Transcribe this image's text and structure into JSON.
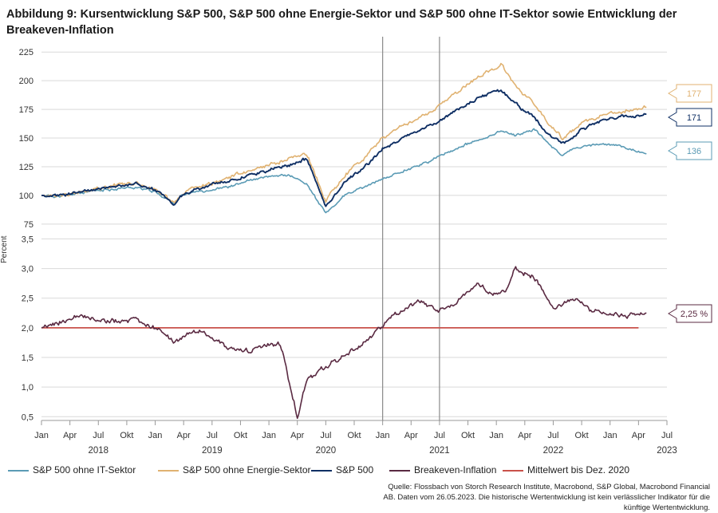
{
  "title": "Abbildung 9: Kursentwicklung S&P 500, S&P 500 ohne Energie-Sektor und S&P 500 ohne IT-Sektor sowie Entwicklung der Breakeven-Inflation",
  "source": "Quelle: Flossbach von Storch Research Institute, Macrobond, S&P Global, Macrobond Financial AB. Daten vom 26.05.2023. Die historische Wertentwicklung ist kein verlässlicher Indikator für die künftige Wertentwicklung.",
  "colors": {
    "it": "#5b9bb5",
    "energy": "#e0b271",
    "sp500": "#0f2f64",
    "breakeven": "#5a2a42",
    "mean": "#c9514a"
  },
  "chart_data": [
    {
      "type": "line",
      "title": "Kursentwicklung",
      "xlabel": "",
      "ylabel": "",
      "ylim": [
        70,
        230
      ],
      "yticks": [
        "75",
        "100",
        "125",
        "150",
        "175",
        "200",
        "225"
      ],
      "x_month_ticks": [
        "Jan",
        "Apr",
        "Jul",
        "Okt",
        "Jan",
        "Apr",
        "Jul",
        "Okt",
        "Jan",
        "Apr",
        "Jul",
        "Okt",
        "Jan",
        "Apr",
        "Jul",
        "Okt",
        "Jan",
        "Apr",
        "Jul",
        "Okt",
        "Jan",
        "Apr",
        "Jul"
      ],
      "x_years": [
        "2018",
        "2019",
        "2020",
        "2021",
        "2022",
        "2023"
      ],
      "x": [
        0,
        2,
        4,
        6,
        8,
        10,
        12,
        14,
        14.7,
        16,
        18,
        20,
        22,
        24,
        26,
        28,
        30,
        32,
        34,
        36,
        38,
        41,
        43,
        45,
        47,
        48.5,
        50,
        52,
        53.5,
        55,
        56,
        57,
        59,
        61,
        63.9
      ],
      "series": [
        {
          "name": "S&P 500 ohne IT-Sektor",
          "color": "#5b9bb5",
          "values": [
            100,
            99,
            102,
            104,
            106,
            107,
            103,
            93,
            99,
            103,
            105,
            108,
            113,
            116,
            118,
            110,
            84,
            100,
            107,
            114,
            121,
            130,
            138,
            145,
            150,
            157,
            152,
            158,
            145,
            135,
            140,
            142,
            145,
            143,
            136
          ],
          "end_label": "136"
        },
        {
          "name": "S&P 500 ohne Energie-Sektor",
          "color": "#e0b271",
          "values": [
            100,
            100,
            103,
            106,
            109,
            111,
            106,
            94,
            100,
            106,
            111,
            116,
            121,
            126,
            131,
            136,
            95,
            118,
            132,
            150,
            160,
            172,
            185,
            197,
            207,
            214,
            195,
            180,
            162,
            150,
            155,
            162,
            170,
            173,
            177
          ],
          "end_label": "177"
        },
        {
          "name": "S&P 500",
          "color": "#0f2f64",
          "values": [
            100,
            100,
            103,
            105,
            108,
            110,
            105,
            92,
            99,
            104,
            109,
            113,
            118,
            122,
            126,
            132,
            90,
            112,
            124,
            140,
            150,
            160,
            170,
            180,
            188,
            192,
            180,
            168,
            152,
            145,
            150,
            158,
            165,
            168,
            171
          ],
          "end_label": "171"
        }
      ]
    },
    {
      "type": "line",
      "title": "Breakeven-Inflation",
      "xlabel": "",
      "ylabel": "Percent",
      "ylim": [
        0.45,
        3.6
      ],
      "yticks": [
        "0,5",
        "1,0",
        "1,5",
        "2,0",
        "2,5",
        "3,0",
        "3,5"
      ],
      "x": [
        0,
        2,
        4,
        6,
        8,
        10,
        12,
        14,
        16,
        18,
        20,
        22,
        24,
        25,
        25.5,
        26,
        27,
        28,
        30,
        32,
        34,
        36,
        38,
        40,
        42,
        44,
        46,
        48,
        49,
        50,
        52,
        54,
        56,
        58,
        60,
        61,
        63.9
      ],
      "series": [
        {
          "name": "Breakeven-Inflation",
          "color": "#5a2a42",
          "values": [
            2.0,
            2.1,
            2.18,
            2.12,
            2.1,
            2.12,
            2.0,
            1.75,
            1.95,
            1.85,
            1.65,
            1.6,
            1.72,
            1.75,
            1.6,
            1.2,
            0.5,
            1.1,
            1.35,
            1.55,
            1.72,
            2.05,
            2.3,
            2.45,
            2.3,
            2.45,
            2.75,
            2.55,
            2.6,
            3.0,
            2.85,
            2.35,
            2.5,
            2.3,
            2.25,
            2.2,
            2.25
          ],
          "end_label": "2,25 %"
        },
        {
          "name": "Mittelwert bis Dez. 2020",
          "color": "#c9514a",
          "values": [
            2.0,
            2.0,
            2.0,
            2.0,
            2.0,
            2.0,
            2.0,
            2.0,
            2.0,
            2.0,
            2.0,
            2.0,
            2.0,
            2.0,
            2.0,
            2.0,
            2.0,
            2.0,
            2.0,
            2.0,
            2.0,
            2.0,
            2.0,
            2.0,
            2.0,
            2.0,
            2.0,
            2.0,
            2.0,
            2.0,
            2.0,
            2.0,
            2.0,
            2.0,
            2.0,
            2.0,
            2.0
          ]
        }
      ]
    }
  ],
  "vertical_markers_month_index": [
    36,
    42
  ],
  "legend": [
    {
      "label": "S&P 500 ohne IT-Sektor",
      "color": "#5b9bb5"
    },
    {
      "label": "S&P 500 ohne Energie-Sektor",
      "color": "#e0b271"
    },
    {
      "label": "S&P 500",
      "color": "#0f2f64"
    },
    {
      "label": "Breakeven-Inflation",
      "color": "#5a2a42"
    },
    {
      "label": "Mittelwert bis Dez. 2020",
      "color": "#c9514a"
    }
  ]
}
